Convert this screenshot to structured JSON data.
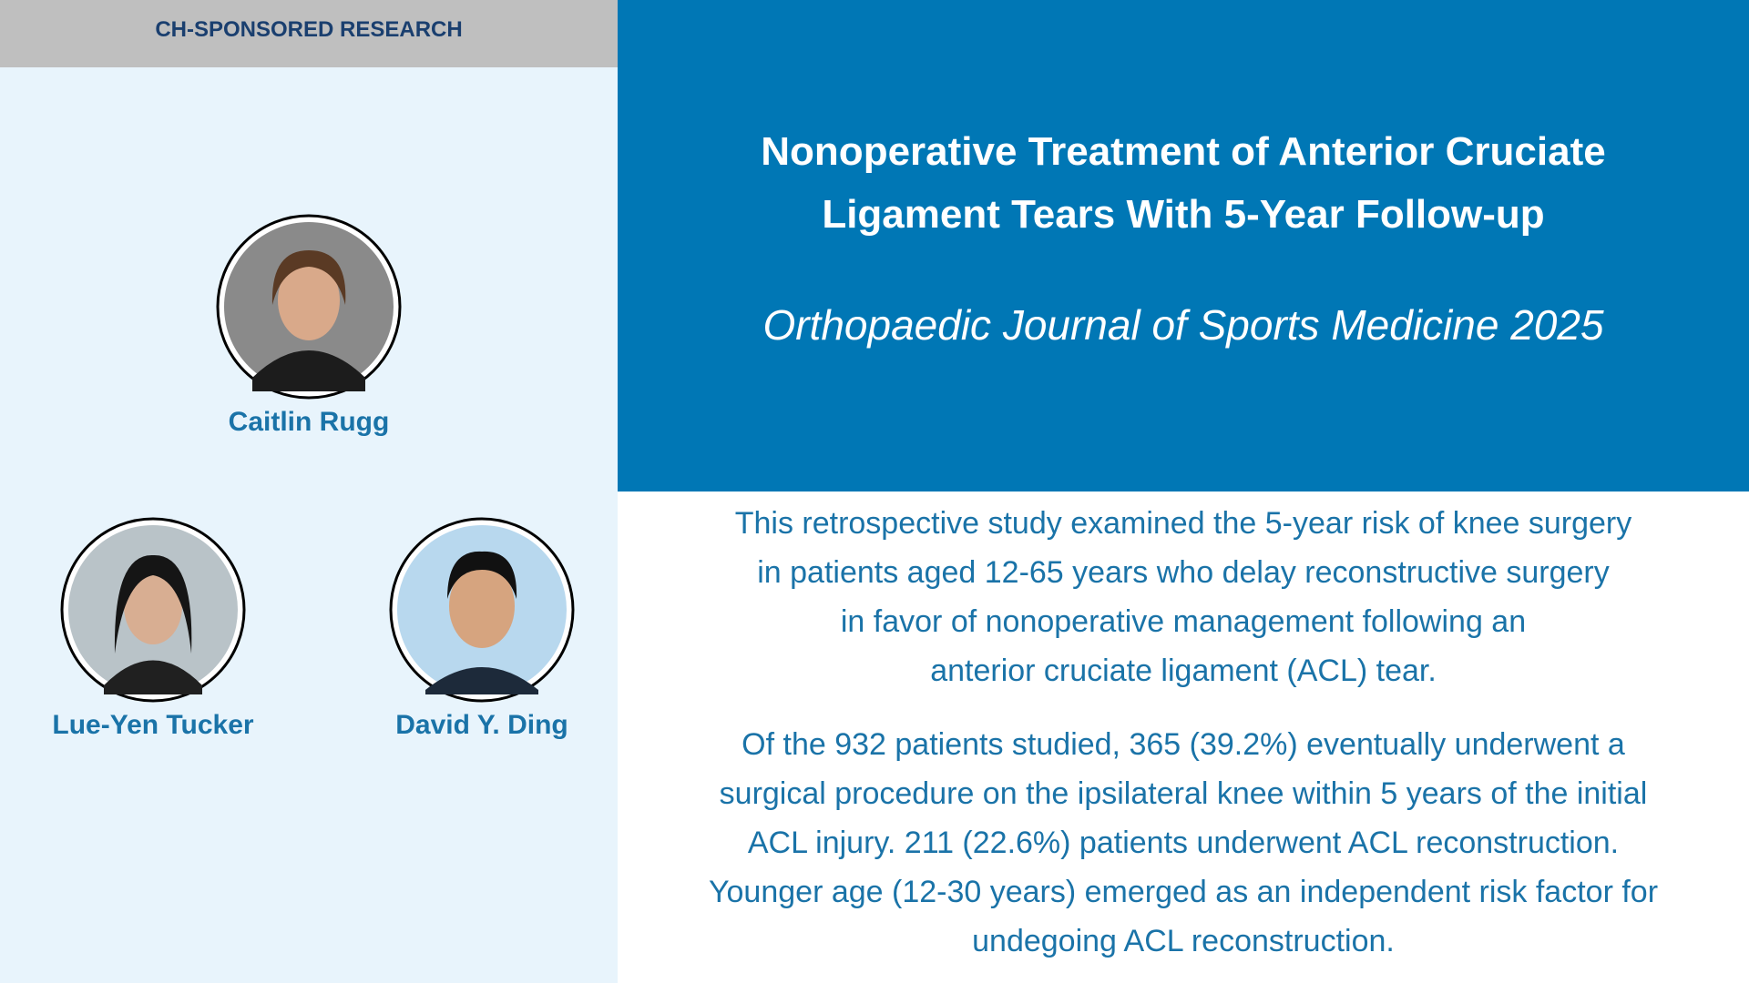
{
  "header": {
    "label": "CH-SPONSORED RESEARCH"
  },
  "title": {
    "lines": [
      "Nonoperative Treatment of Anterior Cruciate",
      "Ligament Tears With 5-Year Follow-up"
    ]
  },
  "journal": "Orthopaedic Journal of Sports Medicine 2025",
  "authors": [
    {
      "name": "Caitlin Rugg"
    },
    {
      "name": "Lue-Yen Tucker"
    },
    {
      "name": "David Y. Ding"
    }
  ],
  "paragraphs": [
    {
      "lines": [
        "This retrospective study examined the 5-year risk of knee surgery",
        "in patients aged 12-65 years who delay reconstructive surgery",
        "in favor of nonoperative management following an",
        "anterior cruciate ligament (ACL) tear."
      ]
    },
    {
      "lines": [
        "Of the 932 patients studied, 365 (39.2%) eventually underwent a",
        "surgical procedure on the ipsilateral knee within 5 years of the initial",
        "ACL injury. 211 (22.6%) patients underwent ACL reconstruction.",
        "Younger age (12-30 years) emerged as an independent risk factor for",
        "undegoing ACL reconstruction."
      ]
    }
  ]
}
